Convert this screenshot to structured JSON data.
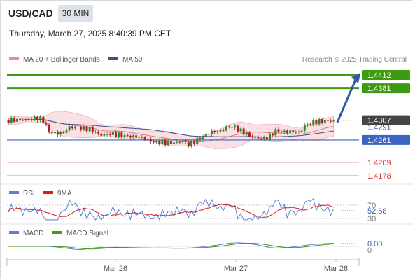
{
  "header": {
    "pair": "USD/CAD",
    "timeframe": "30 MIN",
    "timestamp": "Thursday, March 27, 2025 8:40:39 PM CET"
  },
  "legend": {
    "ma20_bb": "MA 20 + Bollinger Bands",
    "ma50": "MA 50",
    "credit": "Research © 2025 Trading Central"
  },
  "colors": {
    "green": "#3d9a12",
    "blue": "#3a63c3",
    "red": "#e03434",
    "band": "#f2c7cc",
    "ma20": "#e07a86",
    "ma50": "#3b4f86",
    "arrow": "#2c5aa8",
    "last": "#444444"
  },
  "chart_data": [
    {
      "type": "candlestick",
      "x_ticks": [
        "Mar 26",
        "Mar 27",
        "Mar 28"
      ],
      "last_price": "1.4307",
      "ma20_value": "1.4291",
      "resistance": [
        "1.4412",
        "1.4381"
      ],
      "pivot": "1.4261",
      "support": [
        "1.4209",
        "1.4178"
      ],
      "forecast": "up",
      "ylim": [
        1.4165,
        1.4425
      ]
    },
    {
      "type": "line",
      "legend": [
        "RSI",
        "9MA"
      ],
      "levels": [
        "70",
        "30"
      ],
      "value": "52.68"
    },
    {
      "type": "line",
      "legend": [
        "MACD",
        "MACD Signal"
      ],
      "levels": [
        "0"
      ],
      "value": "0.00"
    }
  ]
}
